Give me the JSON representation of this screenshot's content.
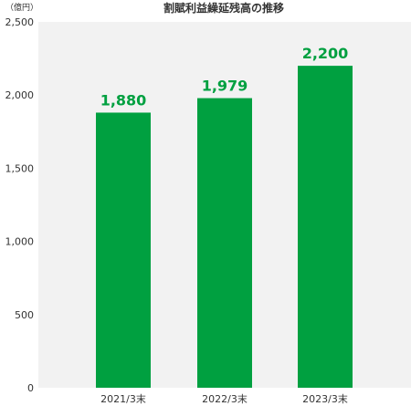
{
  "chart_data": {
    "type": "bar",
    "title": "割賦利益繰延残高の推移",
    "unit": "（億円）",
    "categories": [
      "2021/3末",
      "2022/3末",
      "2023/3末"
    ],
    "values": [
      1880,
      1979,
      2200
    ],
    "value_labels": [
      "1,880",
      "1,979",
      "2,200"
    ],
    "ylim": [
      0,
      2500
    ],
    "yticks": [
      0,
      500,
      1000,
      1500,
      2000,
      2500
    ],
    "ytick_labels": [
      "0",
      "500",
      "1,000",
      "1,500",
      "2,000",
      "2,500"
    ],
    "grid": false,
    "colors": {
      "bar": "#00A040",
      "label": "#00A040",
      "plot_background": "#F2F2F2"
    }
  }
}
